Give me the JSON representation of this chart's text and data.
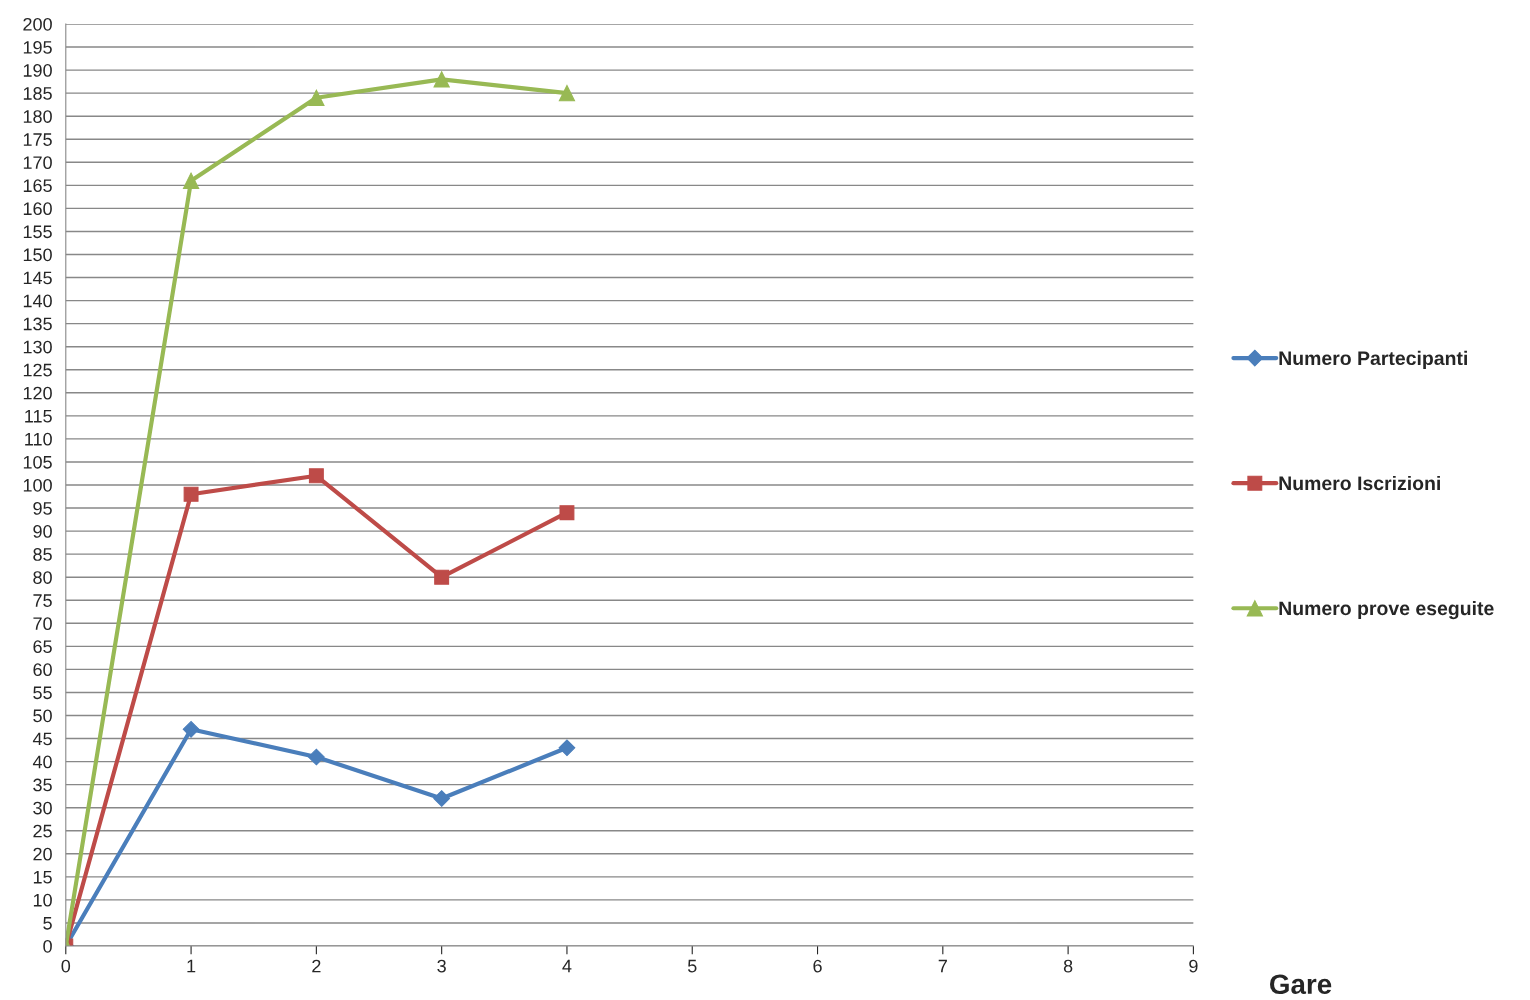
{
  "chart_data": {
    "type": "line",
    "xlabel": "Gare",
    "x": [
      0,
      1,
      2,
      3,
      4
    ],
    "series": [
      {
        "name": "Numero Partecipanti",
        "color": "#4a7ebb",
        "marker": "diamond",
        "values": [
          0,
          47,
          41,
          32,
          43
        ]
      },
      {
        "name": "Numero Iscrizioni",
        "color": "#be4b48",
        "marker": "square",
        "values": [
          0,
          98,
          102,
          80,
          94
        ]
      },
      {
        "name": "Numero prove eseguite",
        "color": "#98b954",
        "marker": "triangle",
        "values": [
          0,
          166,
          184,
          188,
          185
        ]
      }
    ],
    "xlim": [
      0,
      9
    ],
    "xticks": [
      0,
      1,
      2,
      3,
      4,
      5,
      6,
      7,
      8,
      9
    ],
    "ylim": [
      0,
      200
    ],
    "yticks": [
      0,
      5,
      10,
      15,
      20,
      25,
      30,
      35,
      40,
      45,
      50,
      55,
      60,
      65,
      70,
      75,
      80,
      85,
      90,
      95,
      100,
      105,
      110,
      115,
      120,
      125,
      130,
      135,
      140,
      145,
      150,
      155,
      160,
      165,
      170,
      175,
      180,
      185,
      190,
      195,
      200
    ],
    "grid": "y",
    "legend": "right"
  }
}
